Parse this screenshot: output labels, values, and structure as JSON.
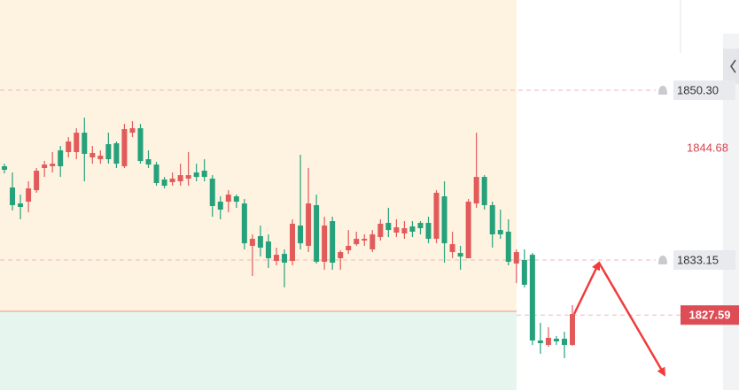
{
  "chart_data": {
    "type": "candlestick",
    "up_color": "#e15b5b",
    "down_color": "#26a17b",
    "ylim": [
      1820.02,
      1859.41
    ],
    "zone_split_level": 1827.97,
    "yticks": [
      {
        "value": 1850.3,
        "label": "1850.30"
      },
      {
        "value": 1833.15,
        "label": "1833.15"
      }
    ],
    "high_label": {
      "value": 1844.68,
      "label": "1844.68"
    },
    "last_price": {
      "value": 1827.59,
      "label": "1827.59"
    },
    "candles": [
      [
        1842.62,
        1842.88,
        1841.9,
        1842.26
      ],
      [
        1840.47,
        1841.99,
        1838.15,
        1838.69
      ],
      [
        1838.86,
        1839.76,
        1837.26,
        1838.51
      ],
      [
        1839.04,
        1841.1,
        1837.97,
        1840.38
      ],
      [
        1840.2,
        1842.44,
        1839.94,
        1842.17
      ],
      [
        1842.44,
        1843.15,
        1841.54,
        1842.79
      ],
      [
        1842.62,
        1844.05,
        1841.99,
        1842.88
      ],
      [
        1844.22,
        1844.67,
        1841.54,
        1842.62
      ],
      [
        1844.05,
        1845.56,
        1843.51,
        1845.12
      ],
      [
        1844.05,
        1846.46,
        1843.33,
        1846.01
      ],
      [
        1846.01,
        1847.53,
        1841.1,
        1843.87
      ],
      [
        1843.51,
        1844.67,
        1842.88,
        1843.96
      ],
      [
        1843.33,
        1844.22,
        1842.88,
        1843.69
      ],
      [
        1844.85,
        1846.01,
        1842.88,
        1843.33
      ],
      [
        1844.94,
        1845.12,
        1842.44,
        1842.88
      ],
      [
        1842.62,
        1846.9,
        1842.44,
        1846.37
      ],
      [
        1846.01,
        1847.17,
        1845.56,
        1846.46
      ],
      [
        1846.46,
        1846.9,
        1842.88,
        1843.15
      ],
      [
        1843.33,
        1844.22,
        1842.44,
        1842.79
      ],
      [
        1842.79,
        1843.06,
        1840.65,
        1840.92
      ],
      [
        1841.28,
        1841.54,
        1840.38,
        1840.65
      ],
      [
        1841.01,
        1841.99,
        1840.65,
        1841.37
      ],
      [
        1841.1,
        1842.88,
        1840.65,
        1841.72
      ],
      [
        1841.37,
        1844.05,
        1840.65,
        1841.72
      ],
      [
        1841.99,
        1842.88,
        1841.1,
        1841.54
      ],
      [
        1842.17,
        1843.33,
        1841.1,
        1841.54
      ],
      [
        1841.37,
        1841.72,
        1837.52,
        1838.6
      ],
      [
        1839.04,
        1839.58,
        1837.26,
        1838.24
      ],
      [
        1839.04,
        1840.2,
        1837.97,
        1839.76
      ],
      [
        1839.58,
        1839.76,
        1838.42,
        1839.04
      ],
      [
        1838.86,
        1839.31,
        1834.22,
        1834.84
      ],
      [
        1834.58,
        1835.74,
        1831.54,
        1835.29
      ],
      [
        1835.56,
        1836.63,
        1833.5,
        1834.4
      ],
      [
        1835.02,
        1835.74,
        1832.34,
        1833.33
      ],
      [
        1833.06,
        1834.4,
        1832.61,
        1833.68
      ],
      [
        1833.77,
        1834.22,
        1830.38,
        1832.88
      ],
      [
        1833.06,
        1837.26,
        1832.61,
        1836.81
      ],
      [
        1836.63,
        1843.78,
        1834.22,
        1834.84
      ],
      [
        1834.58,
        1842.44,
        1833.95,
        1838.86
      ],
      [
        1838.69,
        1839.76,
        1832.79,
        1832.97
      ],
      [
        1832.97,
        1837.52,
        1832.16,
        1836.63
      ],
      [
        1837.08,
        1837.52,
        1832.16,
        1832.88
      ],
      [
        1833.33,
        1834.13,
        1832.16,
        1833.95
      ],
      [
        1834.13,
        1836.18,
        1833.77,
        1834.58
      ],
      [
        1834.75,
        1836.01,
        1834.58,
        1835.29
      ],
      [
        1835.11,
        1835.74,
        1834.58,
        1835.29
      ],
      [
        1834.22,
        1836.18,
        1833.95,
        1835.74
      ],
      [
        1835.47,
        1837.26,
        1835.11,
        1836.81
      ],
      [
        1836.9,
        1838.42,
        1835.47,
        1836.18
      ],
      [
        1835.92,
        1837.26,
        1835.47,
        1836.45
      ],
      [
        1835.83,
        1837.08,
        1835.29,
        1836.36
      ],
      [
        1836.54,
        1837.08,
        1835.47,
        1836.01
      ],
      [
        1836.9,
        1837.08,
        1835.74,
        1836.36
      ],
      [
        1836.9,
        1837.52,
        1834.84,
        1835.29
      ],
      [
        1835.29,
        1840.2,
        1834.84,
        1839.94
      ],
      [
        1839.58,
        1841.1,
        1832.88,
        1834.84
      ],
      [
        1833.95,
        1836.01,
        1833.33,
        1834.75
      ],
      [
        1833.86,
        1834.58,
        1832.16,
        1833.5
      ],
      [
        1833.33,
        1839.31,
        1833.33,
        1839.04
      ],
      [
        1838.86,
        1846.01,
        1838.42,
        1841.54
      ],
      [
        1841.54,
        1841.72,
        1838.24,
        1838.69
      ],
      [
        1838.69,
        1839.04,
        1834.4,
        1835.74
      ],
      [
        1836.18,
        1838.24,
        1835.29,
        1835.74
      ],
      [
        1836.01,
        1837.26,
        1832.61,
        1832.97
      ],
      [
        1832.79,
        1834.22,
        1830.82,
        1833.95
      ],
      [
        1833.15,
        1834.22,
        1830.38,
        1830.65
      ],
      [
        1833.68,
        1833.86,
        1824.57,
        1825.02
      ],
      [
        1825.02,
        1826.8,
        1823.68,
        1824.75
      ],
      [
        1824.57,
        1826.36,
        1824.39,
        1825.29
      ],
      [
        1825.2,
        1825.46,
        1824.57,
        1824.93
      ],
      [
        1825.2,
        1825.91,
        1823.23,
        1824.57
      ],
      [
        1824.57,
        1828.59,
        1824.48,
        1827.7
      ]
    ]
  }
}
